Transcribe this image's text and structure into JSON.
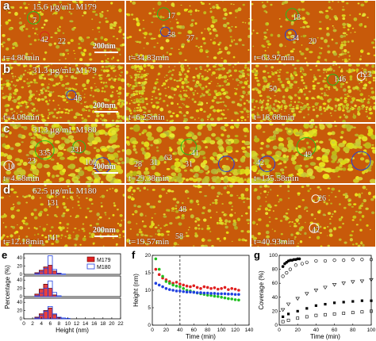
{
  "panels": [
    {
      "letter": "a",
      "concentration": "15.6 µg/mL M179",
      "scale_bar": "200nm",
      "frames": [
        {
          "time": "t=4.80min",
          "labels": [
            "7",
            "42",
            "22"
          ]
        },
        {
          "time": "t=34.83min",
          "labels": [
            "17",
            "58",
            "27"
          ]
        },
        {
          "time": "t=63.97min",
          "labels": [
            "18",
            "34",
            "20"
          ]
        }
      ]
    },
    {
      "letter": "b",
      "concentration": "31.3 µg/mL M179",
      "scale_bar": "200nm",
      "frames": [
        {
          "time": "t=4.08min",
          "labels": [
            "46"
          ]
        },
        {
          "time": "t=6.25min",
          "labels": []
        },
        {
          "time": "t=18.68min",
          "labels": [
            "50",
            "146",
            "123"
          ]
        }
      ]
    },
    {
      "letter": "c",
      "concentration": "31.3 µg/mL M180",
      "scale_bar": "200nm",
      "frames": [
        {
          "time": "t=4.58min",
          "labels": [
            "335",
            "231",
            "23",
            "10",
            "109"
          ]
        },
        {
          "time": "t=29.38min",
          "labels": [
            "41",
            "28",
            "31",
            "63",
            "31"
          ]
        },
        {
          "time": "t=135.58min",
          "labels": [
            "49",
            "42"
          ]
        }
      ]
    },
    {
      "letter": "d",
      "concentration": "62.5 µg/mL M180",
      "scale_bar": "200nm",
      "frames": [
        {
          "time": "t=12.18min",
          "labels": [
            "131",
            "141"
          ]
        },
        {
          "time": "t=19.57min",
          "labels": [
            "48",
            "58"
          ]
        },
        {
          "time": "t=40.93min",
          "labels": [
            "26",
            "42"
          ]
        }
      ]
    }
  ],
  "colors": {
    "substrate": "#c85a0a",
    "nanostructure": "#c8c828",
    "red": "#e02020",
    "blue": "#2040e0",
    "green": "#20c020"
  },
  "chart_data": [
    {
      "type": "bar",
      "panel": "e",
      "xlabel": "Height (nm)",
      "ylabel": "Percentage (%)",
      "xticks": [
        0,
        2,
        4,
        6,
        8,
        10,
        12,
        14,
        16,
        18,
        20,
        22
      ],
      "xlim": [
        0,
        22
      ],
      "legend": [
        "M179",
        "M180"
      ],
      "subplots": [
        {
          "yticks": [
            0,
            20,
            40
          ],
          "series": [
            {
              "name": "M179",
              "color": "#e02020",
              "x": [
                3,
                4,
                5,
                6,
                7,
                8
              ],
              "values": [
                4,
                10,
                18,
                22,
                8,
                2
              ]
            },
            {
              "name": "M180",
              "color": "#2040e0",
              "x": [
                3,
                4,
                5,
                6,
                7,
                8,
                9
              ],
              "values": [
                2,
                6,
                14,
                45,
                12,
                3,
                1
              ]
            }
          ]
        },
        {
          "yticks": [
            0,
            20,
            40
          ],
          "series": [
            {
              "name": "M179",
              "color": "#e02020",
              "x": [
                3,
                4,
                5,
                6,
                7
              ],
              "values": [
                6,
                18,
                30,
                20,
                4
              ]
            },
            {
              "name": "M180",
              "color": "#2040e0",
              "x": [
                3,
                4,
                5,
                6,
                7,
                8
              ],
              "values": [
                2,
                8,
                20,
                38,
                10,
                2
              ]
            }
          ]
        },
        {
          "yticks": [
            0,
            20,
            40
          ],
          "series": [
            {
              "name": "M179",
              "color": "#e02020",
              "x": [
                3,
                4,
                5,
                6,
                7,
                8
              ],
              "values": [
                4,
                12,
                20,
                26,
                10,
                3
              ]
            },
            {
              "name": "M180",
              "color": "#2040e0",
              "x": [
                3,
                4,
                5,
                6,
                7,
                8,
                9,
                10
              ],
              "values": [
                2,
                8,
                18,
                30,
                12,
                4,
                2,
                1
              ]
            }
          ]
        }
      ]
    },
    {
      "type": "scatter",
      "panel": "f",
      "xlabel": "Time (min)",
      "ylabel": "Height (nm)",
      "xlim": [
        0,
        140
      ],
      "ylim": [
        0,
        20
      ],
      "xticks": [
        0,
        20,
        40,
        60,
        80,
        100,
        120,
        140
      ],
      "yticks": [
        0,
        5,
        10,
        15,
        20
      ],
      "vline_x": 40,
      "series": [
        {
          "color": "#e02020",
          "x": [
            5,
            10,
            15,
            20,
            25,
            30,
            35,
            40,
            45,
            50,
            55,
            60,
            65,
            70,
            75,
            80,
            85,
            90,
            95,
            100,
            105,
            110,
            115,
            120,
            125
          ],
          "y": [
            16,
            14.5,
            13.5,
            13,
            12.5,
            12,
            12.3,
            11.8,
            11.5,
            11.2,
            11,
            11.3,
            10.8,
            10.5,
            11,
            10.8,
            10.5,
            10.7,
            10.3,
            10.5,
            10.8,
            10.2,
            10.5,
            10.3,
            10
          ]
        },
        {
          "color": "#20c020",
          "x": [
            5,
            10,
            15,
            20,
            25,
            30,
            35,
            40,
            45,
            50,
            55,
            60,
            65,
            70,
            75,
            80,
            85,
            90,
            95,
            100,
            105,
            110,
            115,
            120,
            125
          ],
          "y": [
            19,
            16,
            14,
            12.5,
            12,
            11.5,
            11.2,
            11,
            10.5,
            10,
            9.8,
            9.5,
            9.2,
            9,
            8.8,
            8.6,
            8.5,
            8.3,
            8.2,
            8,
            7.8,
            7.6,
            7.5,
            7.3,
            7.2
          ]
        },
        {
          "color": "#2040e0",
          "x": [
            5,
            10,
            15,
            20,
            25,
            30,
            35,
            40,
            45,
            50,
            55,
            60,
            65,
            70,
            75,
            80,
            85,
            90,
            95,
            100,
            105,
            110,
            115,
            120,
            125
          ],
          "y": [
            12,
            11.5,
            11,
            10.5,
            10.2,
            10,
            9.8,
            9.8,
            9.6,
            9.5,
            9.5,
            9.4,
            9.3,
            9.3,
            9.2,
            9.2,
            9.1,
            9.1,
            9,
            9,
            9,
            8.9,
            8.9,
            8.8,
            8.8
          ]
        }
      ]
    },
    {
      "type": "scatter",
      "panel": "g",
      "xlabel": "Time (min)",
      "ylabel": "Coverage (%)",
      "xlim": [
        0,
        100
      ],
      "ylim": [
        0,
        100
      ],
      "xticks": [
        0,
        20,
        40,
        60,
        80,
        100
      ],
      "yticks": [
        0,
        20,
        40,
        60,
        80,
        100
      ],
      "series": [
        {
          "marker": "filled-circle",
          "x": [
            4,
            6,
            8,
            10,
            12,
            14,
            16,
            18,
            20,
            22
          ],
          "y": [
            84,
            88,
            90,
            92,
            93,
            93,
            94,
            94,
            95,
            95
          ]
        },
        {
          "marker": "open-circle",
          "x": [
            4,
            8,
            12,
            18,
            25,
            30,
            40,
            50,
            60,
            70,
            80,
            90,
            100
          ],
          "y": [
            70,
            75,
            80,
            86,
            88,
            90,
            92,
            92,
            93,
            93,
            94,
            94,
            94
          ]
        },
        {
          "marker": "open-triangle",
          "x": [
            4,
            10,
            20,
            30,
            40,
            50,
            60,
            70,
            80,
            90,
            100
          ],
          "y": [
            22,
            30,
            38,
            45,
            50,
            54,
            58,
            60,
            62,
            63,
            65
          ]
        },
        {
          "marker": "filled-square",
          "x": [
            4,
            10,
            20,
            30,
            40,
            50,
            60,
            70,
            80,
            90,
            100
          ],
          "y": [
            12,
            16,
            20,
            24,
            28,
            30,
            32,
            33,
            34,
            35,
            35
          ]
        },
        {
          "marker": "open-square",
          "x": [
            4,
            10,
            20,
            30,
            40,
            50,
            60,
            70,
            80,
            90,
            100
          ],
          "y": [
            5,
            7,
            10,
            12,
            14,
            15,
            16,
            17,
            18,
            19,
            20
          ]
        }
      ]
    }
  ]
}
